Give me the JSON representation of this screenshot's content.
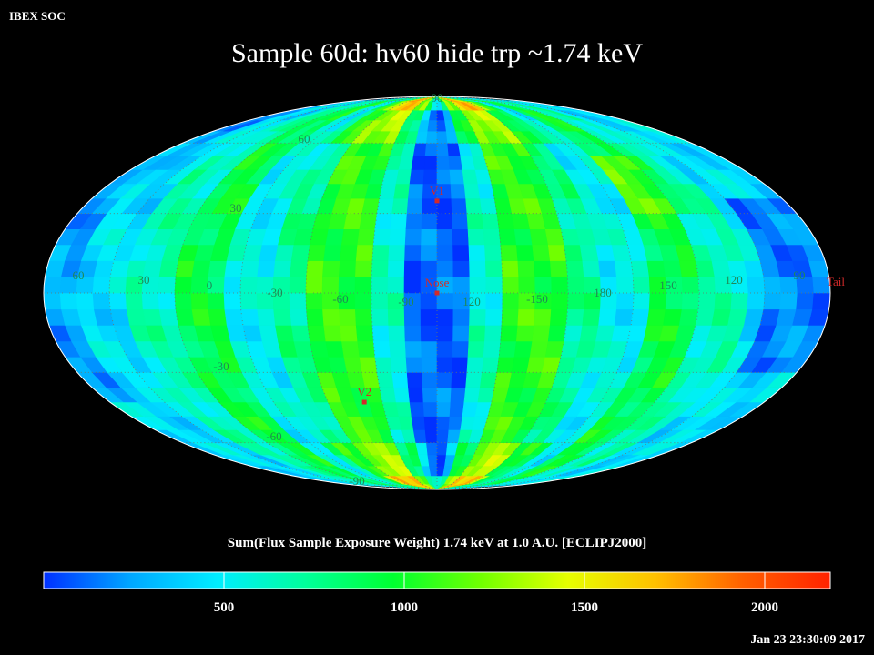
{
  "header": {
    "corner_label": "IBEX SOC",
    "title": "Sample 60d: hv60 hide trp ~1.74 keV"
  },
  "map": {
    "projection": "Mollweide (all-sky)",
    "longitude_labels": [
      "60",
      "30",
      "0",
      "-30",
      "-60",
      "-90",
      "120",
      "-150",
      "180",
      "150",
      "120",
      "90"
    ],
    "latitude_labels": [
      "90",
      "60",
      "30",
      "-30",
      "-60",
      "-90"
    ],
    "markers": [
      {
        "name": "V1",
        "lon": 0,
        "lat": 35
      },
      {
        "name": "Nose",
        "lon": 0,
        "lat": 0
      },
      {
        "name": "V2",
        "lon": -40,
        "lat": -42
      },
      {
        "name": "Tail",
        "lon": 180,
        "lat": 0
      }
    ],
    "colors": {
      "marker": "#d42a2a",
      "grid_label": "#1f8a55",
      "grid_line": "#6a7a6a"
    }
  },
  "colorbar": {
    "title": "Sum(Flux Sample Exposure Weight)  1.74 keV at 1.0 A.U. [ECLIPJ2000]",
    "range": [
      0,
      2180
    ],
    "ticks": [
      "500",
      "1000",
      "1500",
      "2000"
    ],
    "gradient": [
      "#0030ff",
      "#00a8ff",
      "#00eeff",
      "#00ff9a",
      "#00ff30",
      "#70ff00",
      "#e6ff00",
      "#ffc000",
      "#ff6000",
      "#ff2200"
    ]
  },
  "footer": {
    "timestamp": "Jan 23 23:30:09 2017"
  }
}
